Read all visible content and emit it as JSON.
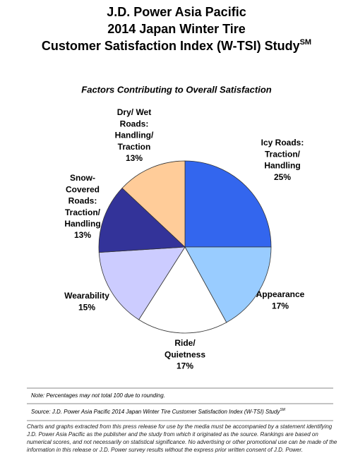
{
  "chart_data": {
    "type": "pie",
    "title": [
      "J.D. Power Asia Pacific",
      "2014 Japan Winter Tire",
      "Customer Satisfaction Index (W-TSI) Study"
    ],
    "title_sup": "SM",
    "subtitle": "Factors Contributing to Overall Satisfaction",
    "categories": [
      [
        "Icy Roads:",
        "Traction/",
        "Handling"
      ],
      [
        "Appearance"
      ],
      [
        "Ride/",
        "Quietness"
      ],
      [
        "Wearability"
      ],
      [
        "Snow-",
        "Covered",
        "Roads:",
        "Traction/",
        "Handling"
      ],
      [
        "Dry/ Wet",
        "Roads:",
        "Handling/",
        "Traction"
      ]
    ],
    "values": [
      25,
      17,
      17,
      15,
      13,
      13
    ],
    "value_labels": [
      "25%",
      "17%",
      "17%",
      "15%",
      "13%",
      "13%"
    ],
    "colors": [
      "#3366ee",
      "#99ccff",
      "#ffffff",
      "#ccccff",
      "#333399",
      "#ffcc99"
    ],
    "note": "Note: Percentages may not total 100 due to rounding.",
    "source": "Source: J.D. Power Asia Pacific 2014 Japan Winter Tire Customer Satisfaction Index (W-TSI) Study",
    "source_sup": "SM",
    "disclaimer": "Charts and graphs extracted from this press release for use by the media must be accompanied by a statement identifying J.D. Power Asia Pacific as the publisher and the study from which it originated as the source. Rankings are based on numerical scores, and not necessarily on statistical significance. No advertising or other promotional use can be made of the information in this release or J.D. Power survey results without the express prior written consent of J.D. Power."
  }
}
